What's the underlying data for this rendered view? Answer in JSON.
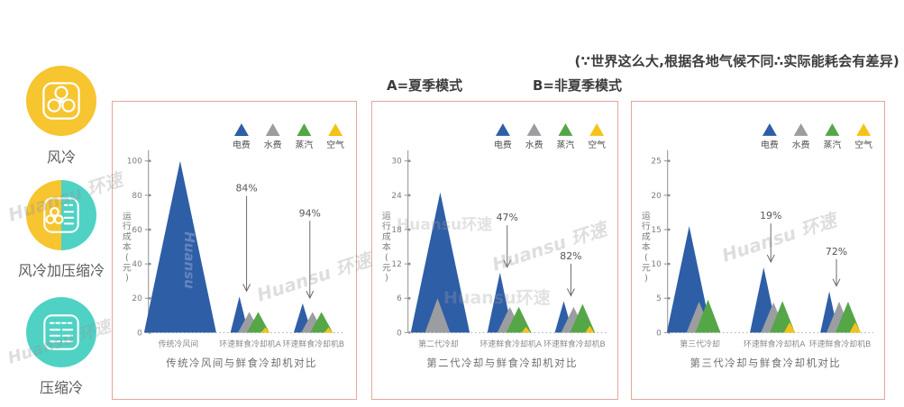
{
  "header": {
    "note": "(∵世界这么大,根据各地气候不同∴实际能耗会有差异)",
    "mode_a": "A=夏季模式",
    "mode_b": "B=非夏季模式"
  },
  "sidebar": {
    "items": [
      {
        "label": "风冷",
        "icon": "fan-icon",
        "circle_colors": [
          "#f6c52f"
        ]
      },
      {
        "label": "风冷加压缩冷",
        "icon": "fan-compressor-icon",
        "circle_colors": [
          "#f6c52f",
          "#4fd2c4"
        ]
      },
      {
        "label": "压缩冷",
        "icon": "compressor-icon",
        "circle_colors": [
          "#4fd2c4"
        ]
      }
    ]
  },
  "watermark": {
    "brand": "Huansu 环速",
    "brand_compact": "Huansu环速",
    "brand_word": "Huansu"
  },
  "legend": {
    "items": [
      "电费",
      "水费",
      "蒸汽",
      "空气"
    ]
  },
  "colors": {
    "electricity": "#2e5ea6",
    "water": "#9b9da1",
    "steam": "#55a647",
    "air": "#f3c319",
    "panel_border": "#e3a79c",
    "axis": "#8f8f8f"
  },
  "chart_data": [
    {
      "type": "area",
      "title": "传统冷风间与鲜食冷却机对比",
      "ylabel": "运行成本(元)",
      "ylim": [
        0,
        100
      ],
      "yticks": [
        0,
        20,
        40,
        60,
        80,
        100
      ],
      "categories": [
        "传统冷风间",
        "环速鲜食冷却机A",
        "环速鲜食冷却机B"
      ],
      "series": [
        {
          "name": "电费",
          "color": "#2e5ea6",
          "values": [
            100,
            21,
            17
          ]
        },
        {
          "name": "水费",
          "color": "#9b9da1",
          "values": [
            0,
            12,
            12
          ]
        },
        {
          "name": "蒸汽",
          "color": "#55a647",
          "values": [
            0,
            12,
            12
          ]
        },
        {
          "name": "空气",
          "color": "#f3c319",
          "values": [
            0,
            3,
            3
          ]
        }
      ],
      "annotations": [
        {
          "category_index": 1,
          "label": "84%"
        },
        {
          "category_index": 2,
          "label": "94%"
        }
      ],
      "grid": false,
      "legend_position": "top-right"
    },
    {
      "type": "area",
      "title": "第二代冷却与鲜食冷却机对比",
      "ylabel": "运行成本(元)",
      "ylim": [
        0,
        30
      ],
      "yticks": [
        0,
        6,
        12,
        18,
        24,
        30
      ],
      "categories": [
        "第二代冷却",
        "环速鲜食冷却机A",
        "环速鲜食冷却机B"
      ],
      "series": [
        {
          "name": "电费",
          "color": "#2e5ea6",
          "values": [
            24.5,
            10.5,
            5.5
          ]
        },
        {
          "name": "水费",
          "color": "#9b9da1",
          "values": [
            6,
            4.5,
            4.5
          ]
        },
        {
          "name": "蒸汽",
          "color": "#55a647",
          "values": [
            0,
            4.5,
            5
          ]
        },
        {
          "name": "空气",
          "color": "#f3c319",
          "values": [
            0,
            1,
            1.2
          ]
        }
      ],
      "annotations": [
        {
          "category_index": 1,
          "label": "47%"
        },
        {
          "category_index": 2,
          "label": "82%"
        }
      ],
      "grid": false,
      "legend_position": "top-right"
    },
    {
      "type": "area",
      "title": "第三代冷却与鲜食冷却机对比",
      "ylabel": "运行成本(元)",
      "ylim": [
        0,
        25
      ],
      "yticks": [
        0,
        5,
        10,
        15,
        20,
        25
      ],
      "categories": [
        "第三代冷却",
        "环速鲜食冷却机A",
        "环速鲜食冷却机B"
      ],
      "series": [
        {
          "name": "电费",
          "color": "#2e5ea6",
          "values": [
            15.5,
            9.5,
            6
          ]
        },
        {
          "name": "水费",
          "color": "#9b9da1",
          "values": [
            4.5,
            4.4,
            4.5
          ]
        },
        {
          "name": "蒸汽",
          "color": "#55a647",
          "values": [
            4.8,
            4.6,
            4.5
          ]
        },
        {
          "name": "空气",
          "color": "#f3c319",
          "values": [
            0,
            1.5,
            1.5
          ]
        }
      ],
      "annotations": [
        {
          "category_index": 1,
          "label": "19%"
        },
        {
          "category_index": 2,
          "label": "72%"
        }
      ],
      "grid": false,
      "legend_position": "top-right"
    }
  ]
}
